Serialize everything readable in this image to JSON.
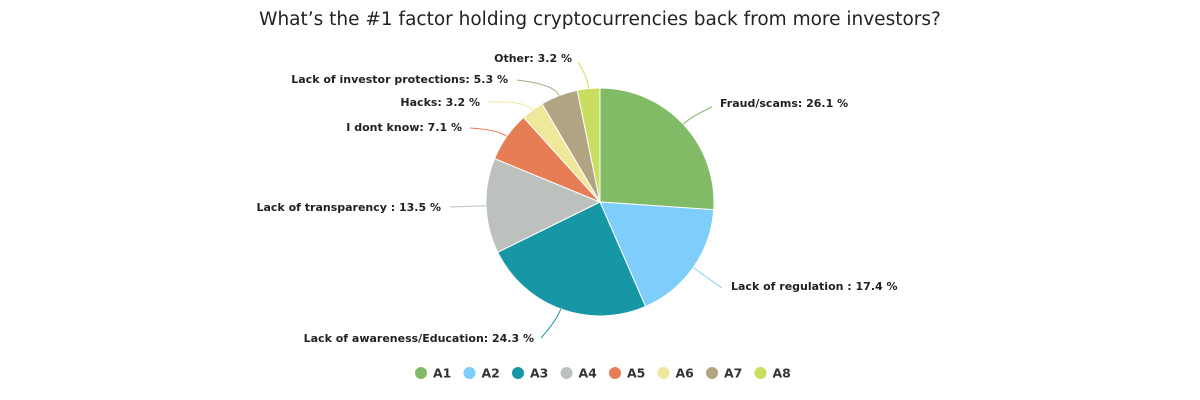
{
  "chart_data": {
    "type": "pie",
    "title": "What’s the #1 factor holding cryptocurrencies back from more investors?",
    "slices": [
      {
        "legend": "A1",
        "label": "Fraud/scams",
        "display": "Fraud/scams: 26.1 %",
        "value": 26.1,
        "color": "#82bb65"
      },
      {
        "legend": "A2",
        "label": "Lack of regulation ",
        "display": "Lack of regulation : 17.4 %",
        "value": 17.4,
        "color": "#7fcdfb"
      },
      {
        "legend": "A3",
        "label": "Lack of awareness/Education",
        "display": "Lack of awareness/Education: 24.3 %",
        "value": 24.3,
        "color": "#1797a6"
      },
      {
        "legend": "A4",
        "label": "Lack of transparency ",
        "display": "Lack of transparency : 13.5 %",
        "value": 13.5,
        "color": "#bdc1bd"
      },
      {
        "legend": "A5",
        "label": "I dont know",
        "display": "I dont know: 7.1 %",
        "value": 7.1,
        "color": "#e67d55"
      },
      {
        "legend": "A6",
        "label": "Hacks",
        "display": "Hacks: 3.2 %",
        "value": 3.2,
        "color": "#efe89b"
      },
      {
        "legend": "A7",
        "label": "Lack of investor protections",
        "display": "Lack of investor protections: 5.3 %",
        "value": 5.3,
        "color": "#b0a483"
      },
      {
        "legend": "A8",
        "label": "Other",
        "display": "Other: 3.2 %",
        "value": 3.2,
        "color": "#c9dd60"
      }
    ],
    "legend_position": "bottom-center"
  }
}
